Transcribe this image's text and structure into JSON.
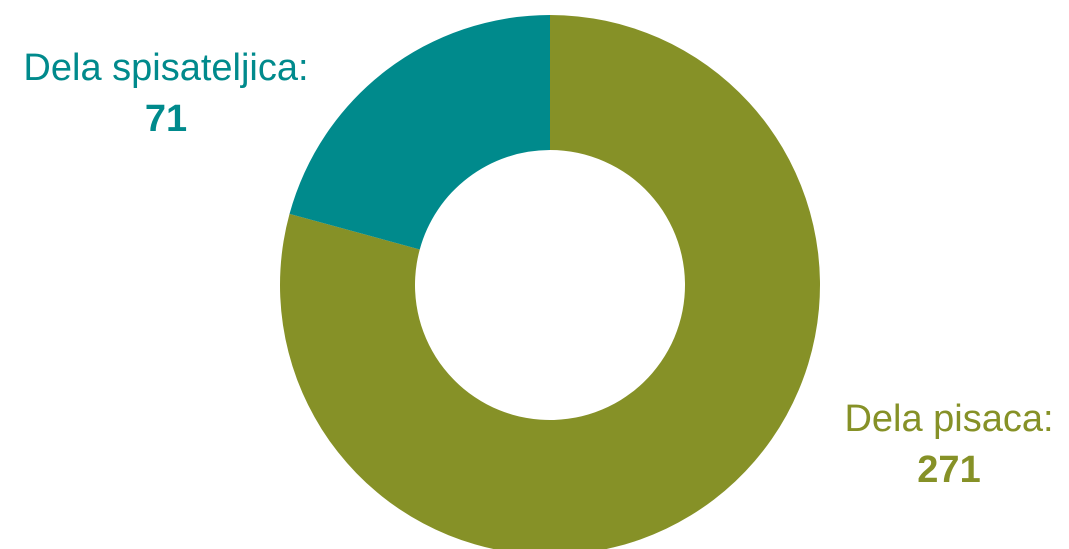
{
  "chart_data": {
    "type": "pie",
    "variant": "donut",
    "title": "",
    "top_fragment_text": "",
    "categories": [
      "Dela spisateljica:",
      "Dela pisaca:"
    ],
    "values": [
      71,
      271
    ],
    "colors": [
      "#008a8c",
      "#869127"
    ],
    "labels": [
      {
        "name": "Dela spisateljica:",
        "value": "71",
        "color": "#008a8c"
      },
      {
        "name": "Dela pisaca:",
        "value": "271",
        "color": "#869127"
      }
    ],
    "legend": "none",
    "start_angle_deg": 0,
    "direction": "clockwise"
  }
}
